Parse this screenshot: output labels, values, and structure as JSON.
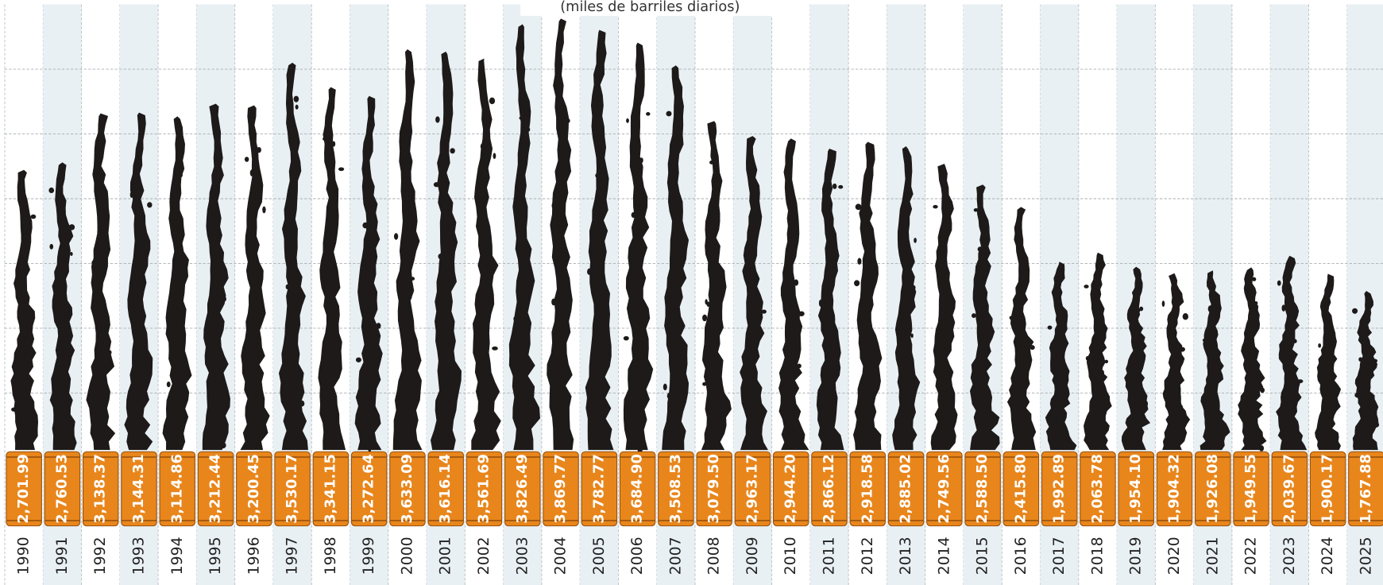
{
  "chart_data": {
    "type": "oil-barrel-bar",
    "subtitle": "(miles de barriles diarios)",
    "categories": [
      "1990",
      "1991",
      "1992",
      "1993",
      "1994",
      "1995",
      "1996",
      "1997",
      "1998",
      "1999",
      "2000",
      "2001",
      "2002",
      "2003",
      "2004",
      "2005",
      "2006",
      "2007",
      "2008",
      "2009",
      "2010",
      "2011",
      "2012",
      "2013",
      "2014",
      "2015",
      "2016",
      "2017",
      "2018",
      "2019",
      "2020",
      "2021",
      "2022",
      "2023",
      "2024",
      "2025"
    ],
    "values": [
      2701.99,
      2760.53,
      3138.37,
      3144.31,
      3114.86,
      3212.44,
      3200.45,
      3530.17,
      3341.15,
      3272.64,
      3633.09,
      3616.14,
      3561.69,
      3826.49,
      3869.77,
      3782.77,
      3684.9,
      3508.53,
      3079.5,
      2963.17,
      2944.2,
      2866.12,
      2918.58,
      2885.02,
      2749.56,
      2588.5,
      2415.8,
      1992.89,
      2063.78,
      1954.1,
      1904.32,
      1926.08,
      1949.55,
      2039.67,
      1900.17,
      1767.88
    ],
    "value_labels": [
      "2,701.99",
      "2,760.53",
      "3,138.37",
      "3,144.31",
      "3,114.86",
      "3,212.44",
      "3,200.45",
      "3,530.17",
      "3,341.15",
      "3,272.64",
      "3,633.09",
      "3,616.14",
      "3,561.69",
      "3,826.49",
      "3,869.77",
      "3,782.77",
      "3,684.90",
      "3,508.53",
      "3,079.50",
      "2,963.17",
      "2,944.20",
      "2,866.12",
      "2,918.58",
      "2,885.02",
      "2,749.56",
      "2,588.50",
      "2,415.80",
      "1,992.89",
      "2,063.78",
      "1,954.10",
      "1,904.32",
      "1,926.08",
      "1,949.55",
      "2,039.67",
      "1,900.17",
      "1,767.88"
    ],
    "color": "#1e1a1a",
    "barrel_color": "#e8861c",
    "ylim": [
      560,
      4000
    ],
    "yticks": [
      1000,
      1500,
      2000,
      2500,
      3000,
      3500
    ],
    "grid": true
  }
}
